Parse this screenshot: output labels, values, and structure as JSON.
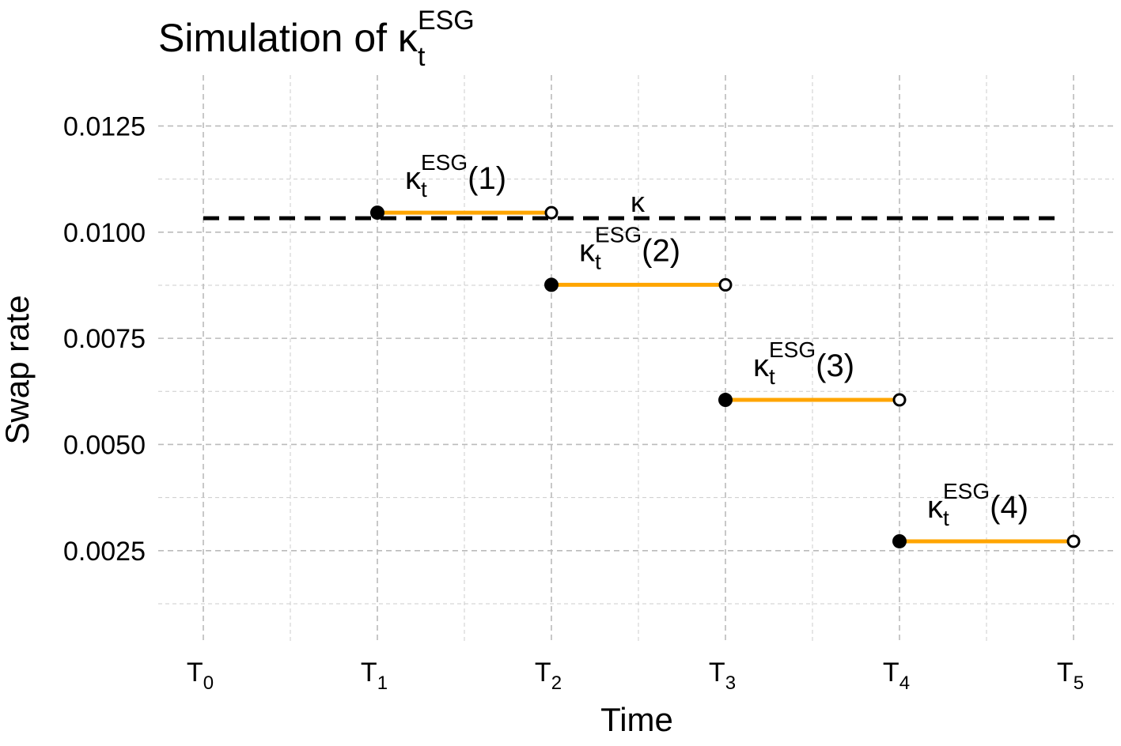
{
  "chart_data": {
    "type": "line",
    "title": {
      "main": "Simulation of κ",
      "sup": "ESG",
      "sub": "t"
    },
    "xlabel": "Time",
    "ylabel": "Swap rate",
    "ylim": [
      0.0003,
      0.0137
    ],
    "y_ticks": [
      {
        "value": 0.0025,
        "label": "0.0025"
      },
      {
        "value": 0.005,
        "label": "0.0050"
      },
      {
        "value": 0.0075,
        "label": "0.0075"
      },
      {
        "value": 0.01,
        "label": "0.0100"
      },
      {
        "value": 0.0125,
        "label": "0.0125"
      }
    ],
    "y_minor_ticks": [
      0.00125,
      0.00375,
      0.00625,
      0.00875,
      0.01125
    ],
    "x_ticks": [
      {
        "value": 0,
        "main": "T",
        "sub": "0"
      },
      {
        "value": 1,
        "main": "T",
        "sub": "1"
      },
      {
        "value": 2,
        "main": "T",
        "sub": "2"
      },
      {
        "value": 3,
        "main": "T",
        "sub": "3"
      },
      {
        "value": 4,
        "main": "T",
        "sub": "4"
      },
      {
        "value": 5,
        "main": "T",
        "sub": "5"
      }
    ],
    "x_minor_ticks": [
      0.5,
      1.5,
      2.5,
      3.5,
      4.5
    ],
    "grid": true,
    "reference_line": {
      "label": "κ",
      "value": 0.01033,
      "x_start": 0,
      "x_end": 5,
      "color": "#000000",
      "style": "dashed"
    },
    "series": [
      {
        "label": {
          "main": "κ",
          "sup": "ESG",
          "sub": "t",
          "suffix": "(1)"
        },
        "x_start": 1,
        "x_end": 2,
        "value": 0.01046
      },
      {
        "label": {
          "main": "κ",
          "sup": "ESG",
          "sub": "t",
          "suffix": "(2)"
        },
        "x_start": 2,
        "x_end": 3,
        "value": 0.00876
      },
      {
        "label": {
          "main": "κ",
          "sup": "ESG",
          "sub": "t",
          "suffix": "(3)"
        },
        "x_start": 3,
        "x_end": 4,
        "value": 0.00605
      },
      {
        "label": {
          "main": "κ",
          "sup": "ESG",
          "sub": "t",
          "suffix": "(4)"
        },
        "x_start": 4,
        "x_end": 5,
        "value": 0.00272
      }
    ],
    "colors": {
      "segment": "#FFA500",
      "reference": "#000000",
      "grid": "#cccccc",
      "point": "#000000"
    }
  }
}
